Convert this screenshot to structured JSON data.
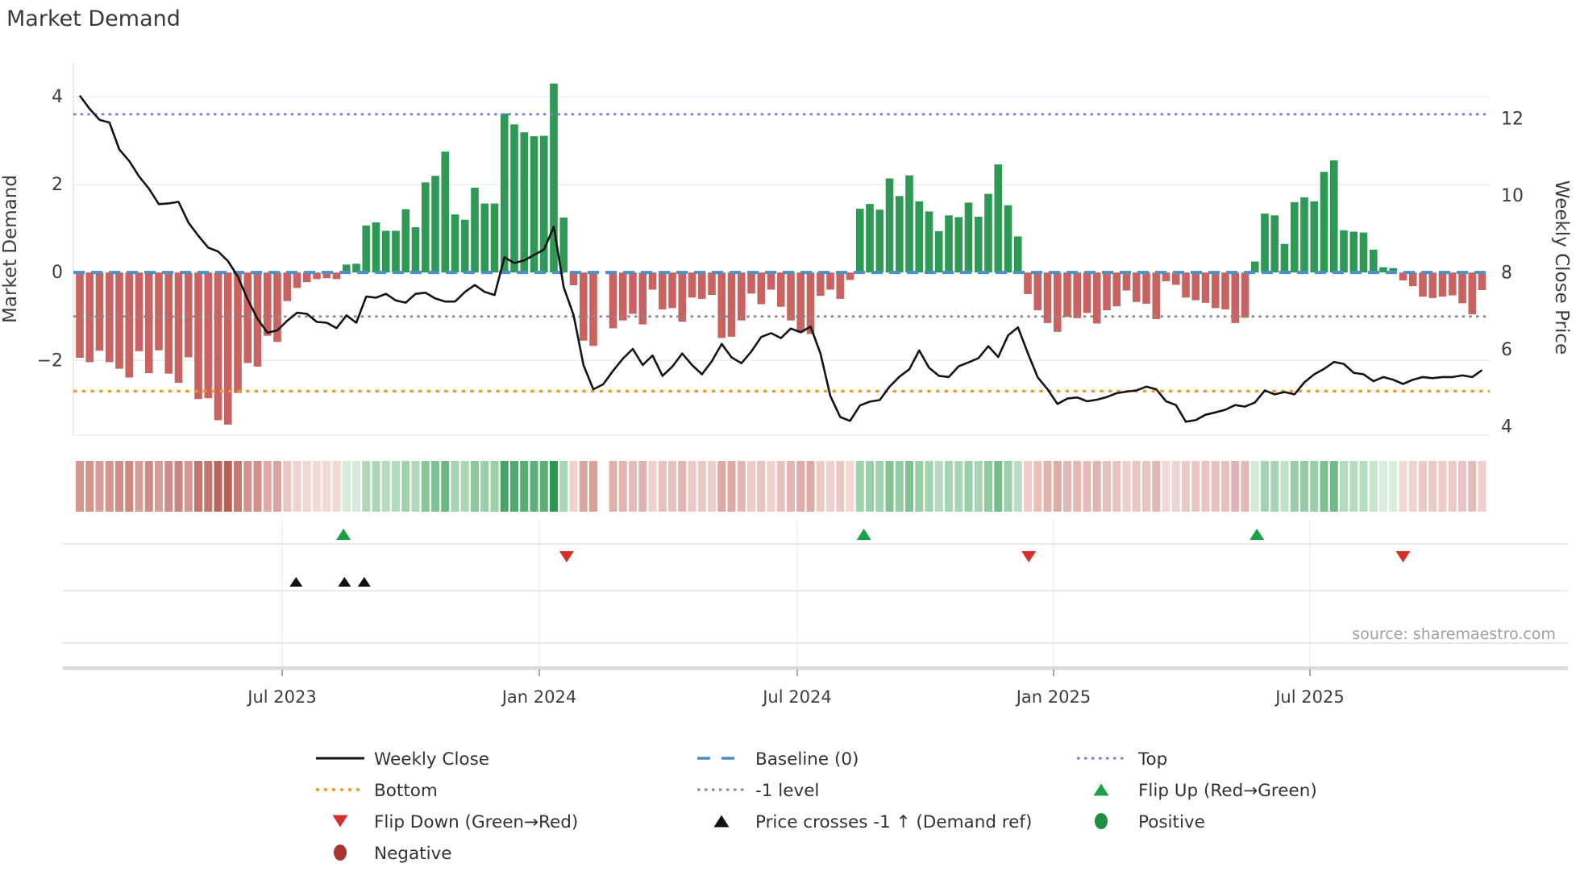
{
  "title": "Market Demand",
  "source": "source: sharemaestro.com",
  "left_axis": {
    "label": "Market Demand",
    "ticks": [
      {
        "value": 4,
        "label": "4"
      },
      {
        "value": 2,
        "label": "2"
      },
      {
        "value": 0,
        "label": "0"
      },
      {
        "value": -2,
        "label": "−2"
      }
    ]
  },
  "right_axis": {
    "label": "Weekly Close Price",
    "ticks": [
      {
        "value": 12,
        "label": "12"
      },
      {
        "value": 10,
        "label": "10"
      },
      {
        "value": 8,
        "label": "8"
      },
      {
        "value": 6,
        "label": "6"
      },
      {
        "value": 4,
        "label": "4"
      }
    ]
  },
  "x_axis": {
    "ticks": [
      {
        "week": 20.49,
        "label": "Jul 2023"
      },
      {
        "week": 46.53,
        "label": "Jan 2024"
      },
      {
        "week": 72.65,
        "label": "Jul 2024"
      },
      {
        "week": 98.61,
        "label": "Jan 2025"
      },
      {
        "week": 124.57,
        "label": "Jul 2025"
      }
    ]
  },
  "colors": {
    "bar_positive": "#2d9955",
    "bar_negative": "#c96361",
    "price_line": "#141414",
    "baseline": "#4a91c9",
    "top_line": "#7b7fd8",
    "bottom_line": "#ef9b28",
    "minus1_line": "#8a8a8a",
    "flip_up": "#19a24a",
    "flip_down": "#d62f2b",
    "price_cross": "#111111",
    "positive_dot": "#1e8f3e",
    "negative_dot": "#a93631",
    "grid": "#e9e9f1",
    "panel_line": "#e2e2e2",
    "axis_band": "#d9d9d9",
    "heat_neg_light": "#f5dedb",
    "heat_neg_deep": "#bb6059",
    "heat_pos_light": "#ddefde",
    "heat_pos_deep": "#27984e",
    "text_dark": "#3a3a3a",
    "text_tick": "#3d3d3d",
    "text_source": "#9f9f9f"
  },
  "legend": [
    {
      "row": 0,
      "col": 0,
      "type": "line",
      "color": "#141414",
      "dash": "",
      "width": 3,
      "label": "Weekly Close"
    },
    {
      "row": 0,
      "col": 1,
      "type": "line",
      "color": "#4a91c9",
      "dash": "16 14",
      "width": 3.5,
      "label": "Baseline (0)"
    },
    {
      "row": 0,
      "col": 2,
      "type": "line",
      "color": "#7b7fd8",
      "dash": "3.5 5.5",
      "width": 3,
      "label": "Top"
    },
    {
      "row": 1,
      "col": 0,
      "type": "line",
      "color": "#ef9b28",
      "dash": "4 6",
      "width": 3.5,
      "label": "Bottom"
    },
    {
      "row": 1,
      "col": 1,
      "type": "line",
      "color": "#8a8a8a",
      "dash": "3.5 5.5",
      "width": 3,
      "label": "-1 level"
    },
    {
      "row": 1,
      "col": 2,
      "type": "triangle-up",
      "color": "#19a24a",
      "label": "Flip Up (Red→Green)"
    },
    {
      "row": 2,
      "col": 0,
      "type": "triangle-down",
      "color": "#d62f2b",
      "label": "Flip Down (Green→Red)"
    },
    {
      "row": 2,
      "col": 1,
      "type": "triangle-up",
      "color": "#111111",
      "label": "Price crosses -1 ↑ (Demand ref)"
    },
    {
      "row": 2,
      "col": 2,
      "type": "circle",
      "color": "#1e8f3e",
      "label": "Positive"
    },
    {
      "row": 3,
      "col": 0,
      "type": "circle",
      "color": "#a93631",
      "label": "Negative"
    }
  ],
  "chart_data": {
    "type": "bar",
    "x_unit": "week_index",
    "n_weeks": 143,
    "ylim_left": [
      -3.7,
      4.77
    ],
    "ylim_right": [
      3.78,
      13.45
    ],
    "grid_values_left": [
      4,
      2,
      -2
    ],
    "reference_lines": [
      {
        "name": "Top",
        "axis": "left",
        "value": 3.6
      },
      {
        "name": "Baseline",
        "axis": "left",
        "value": 0
      },
      {
        "name": "-1 level",
        "axis": "left",
        "value": -1
      },
      {
        "name": "Bottom",
        "axis": "left",
        "value": -2.7
      }
    ],
    "series": [
      {
        "name": "Market Demand",
        "type": "bar",
        "axis": "left",
        "values": [
          -1.94,
          -2.04,
          -1.78,
          -2.04,
          -2.19,
          -2.39,
          -1.79,
          -2.29,
          -1.77,
          -2.3,
          -2.51,
          -1.93,
          -2.88,
          -2.86,
          -3.36,
          -3.46,
          -2.74,
          -2.06,
          -2.14,
          -1.44,
          -1.58,
          -0.65,
          -0.35,
          -0.22,
          -0.15,
          -0.13,
          -0.15,
          0.18,
          0.2,
          1.07,
          1.14,
          0.95,
          0.95,
          1.44,
          1.03,
          2.05,
          2.2,
          2.75,
          1.32,
          1.2,
          1.93,
          1.57,
          1.57,
          3.62,
          3.37,
          3.19,
          3.1,
          3.11,
          4.3,
          1.25,
          -0.29,
          -1.55,
          -1.67,
          null,
          -1.27,
          -1.09,
          -0.94,
          -1.18,
          -0.39,
          -0.84,
          -0.81,
          -1.12,
          -0.57,
          -0.6,
          -0.51,
          -1.49,
          -1.46,
          -1.09,
          -0.48,
          -0.72,
          -0.39,
          -0.78,
          -1.09,
          -1.36,
          -1.4,
          -0.53,
          -0.39,
          -0.6,
          -0.17,
          1.45,
          1.56,
          1.43,
          2.14,
          1.74,
          2.21,
          1.62,
          1.39,
          0.94,
          1.3,
          1.26,
          1.59,
          1.27,
          1.79,
          2.46,
          1.53,
          0.82,
          -0.49,
          -0.86,
          -1.15,
          -1.35,
          -1.01,
          -1.04,
          -0.92,
          -1.16,
          -0.86,
          -0.77,
          -0.41,
          -0.67,
          -0.71,
          -1.06,
          -0.2,
          -0.28,
          -0.57,
          -0.63,
          -0.69,
          -0.81,
          -0.84,
          -1.15,
          -1.03,
          0.25,
          1.34,
          1.3,
          0.65,
          1.6,
          1.71,
          1.62,
          2.29,
          2.55,
          0.96,
          0.93,
          0.91,
          0.52,
          0.12,
          0.1,
          -0.18,
          -0.31,
          -0.55,
          -0.58,
          -0.55,
          -0.52,
          -0.7,
          -0.95,
          -0.4
        ]
      },
      {
        "name": "Weekly Close",
        "type": "line",
        "axis": "right",
        "values": [
          12.6,
          12.25,
          11.97,
          11.9,
          11.2,
          10.9,
          10.5,
          10.18,
          9.78,
          9.8,
          9.84,
          9.3,
          8.96,
          8.65,
          8.55,
          8.3,
          7.9,
          7.3,
          6.8,
          6.44,
          6.5,
          6.75,
          6.96,
          6.93,
          6.72,
          6.7,
          6.56,
          6.89,
          6.7,
          7.38,
          7.35,
          7.45,
          7.28,
          7.22,
          7.45,
          7.48,
          7.33,
          7.25,
          7.25,
          7.5,
          7.68,
          7.5,
          7.42,
          8.4,
          8.25,
          8.32,
          8.46,
          8.6,
          9.19,
          7.62,
          6.9,
          5.6,
          4.97,
          5.1,
          5.45,
          5.77,
          6.02,
          5.6,
          5.85,
          5.32,
          5.56,
          5.9,
          5.6,
          5.36,
          5.7,
          6.15,
          5.8,
          5.65,
          5.95,
          6.33,
          6.43,
          6.3,
          6.55,
          6.45,
          6.6,
          5.9,
          4.8,
          4.25,
          4.15,
          4.55,
          4.65,
          4.69,
          5.04,
          5.3,
          5.49,
          5.98,
          5.53,
          5.32,
          5.29,
          5.57,
          5.67,
          5.78,
          6.09,
          5.81,
          6.37,
          6.58,
          5.91,
          5.28,
          4.97,
          4.59,
          4.73,
          4.76,
          4.66,
          4.7,
          4.77,
          4.87,
          4.91,
          4.94,
          5.04,
          4.97,
          4.66,
          4.56,
          4.13,
          4.17,
          4.31,
          4.37,
          4.44,
          4.56,
          4.52,
          4.63,
          4.94,
          4.84,
          4.9,
          4.84,
          5.15,
          5.36,
          5.5,
          5.68,
          5.63,
          5.4,
          5.36,
          5.18,
          5.29,
          5.22,
          5.11,
          5.22,
          5.29,
          5.26,
          5.29,
          5.29,
          5.33,
          5.29,
          5.47
        ]
      }
    ],
    "heat_strip": {
      "note": "weekly demand sign/intensity strip; null week is blank",
      "scale_neg_max": 3.46,
      "scale_pos_max": 4.3
    },
    "markers": {
      "flip_up_weeks": [
        26.7,
        79.4,
        119.2
      ],
      "flip_down_weeks": [
        49.3,
        96.1,
        134.0
      ],
      "price_cross_weeks": [
        21.9,
        26.8,
        28.8
      ]
    }
  }
}
